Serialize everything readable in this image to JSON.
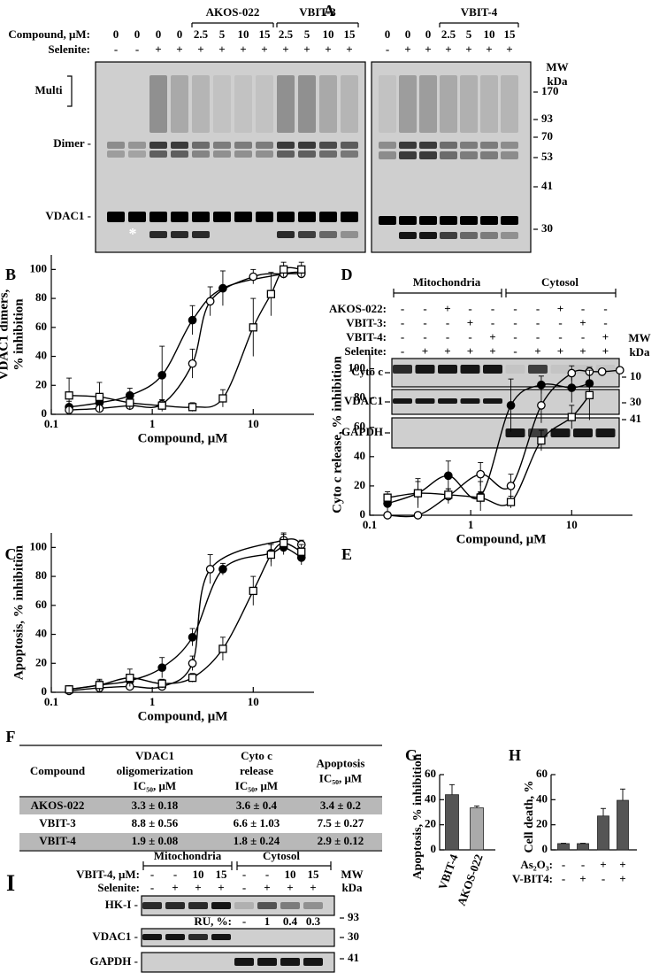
{
  "figure": {
    "A": {
      "letter": "A",
      "compound_label": "Compound, μM:",
      "selenite_label": "Selenite:",
      "groups": [
        "AKOS-022",
        "VBIT-3",
        "VBIT-4"
      ],
      "left_compound": [
        "0",
        "0",
        "0",
        "0",
        "2.5",
        "5",
        "10",
        "15",
        "2.5",
        "5",
        "10",
        "15"
      ],
      "left_selenite": [
        "-",
        "-",
        "+",
        "+",
        "+",
        "+",
        "+",
        "+",
        "+",
        "+",
        "+",
        "+"
      ],
      "right_compound": [
        "0",
        "0",
        "0",
        "2.5",
        "5",
        "10",
        "15"
      ],
      "right_selenite": [
        "-",
        "+",
        "+",
        "+",
        "+",
        "+",
        "+"
      ],
      "mw_header": [
        "MW",
        "kDa"
      ],
      "mw": [
        "170",
        "93",
        "70",
        "53",
        "41",
        "30"
      ],
      "bands": [
        "Multi",
        "Dimer -",
        "VDAC1 -"
      ],
      "asterisk": "*"
    },
    "D": {
      "letter": "D",
      "headers": [
        "Mitochondria",
        "Cytosol"
      ],
      "rows": [
        {
          "label": "AKOS-022:",
          "marks": [
            "-",
            "-",
            "+",
            "-",
            "-",
            "-",
            "-",
            "+",
            "-",
            "-"
          ]
        },
        {
          "label": "VBIT-3:",
          "marks": [
            "-",
            "-",
            "-",
            "+",
            "-",
            "-",
            "-",
            "-",
            "+",
            "-"
          ]
        },
        {
          "label": "VBIT-4:",
          "marks": [
            "-",
            "-",
            "-",
            "-",
            "+",
            "-",
            "-",
            "-",
            "-",
            "+"
          ]
        },
        {
          "label": "Selenite:",
          "marks": [
            "-",
            "+",
            "+",
            "+",
            "+",
            "-",
            "+",
            "+",
            "+",
            "+"
          ]
        }
      ],
      "blots": [
        "Cyto c",
        "VDAC1",
        "GAPDH"
      ],
      "mw_header": [
        "MW",
        "kDa"
      ],
      "mw": [
        "10",
        "30",
        "41"
      ]
    },
    "F": {
      "letter": "F",
      "header": [
        [
          "Compound"
        ],
        [
          "VDAC1",
          "oligomerization",
          "IC₅₀, μM"
        ],
        [
          "Cyto c",
          "release",
          "IC₅₀, μM"
        ],
        [
          "Apoptosis",
          "IC₅₀, μM"
        ]
      ],
      "rows": [
        [
          "AKOS-022",
          "3.3 ± 0.18",
          "3.6 ± 0.4",
          "3.4 ± 0.2"
        ],
        [
          "VBIT-3",
          "8.8 ± 0.56",
          "6.6 ± 1.03",
          "7.5 ± 0.27"
        ],
        [
          "VBIT-4",
          "1.9 ± 0.08",
          "1.8 ± 0.24",
          "2.9 ± 0.12"
        ]
      ]
    },
    "I": {
      "letter": "I",
      "headers": [
        "Mitochondria",
        "Cytosol"
      ],
      "rows": [
        {
          "label": "VBIT-4, μM:",
          "marks": [
            "-",
            "-",
            "10",
            "15",
            "-",
            "-",
            "10",
            "15"
          ]
        },
        {
          "label": "Selenite:",
          "marks": [
            "-",
            "+",
            "+",
            "+",
            "-",
            "+",
            "+",
            "+"
          ]
        }
      ],
      "ru_label": "RU, %:",
      "ru": [
        "-",
        "1",
        "0.4",
        "0.3"
      ],
      "blots": [
        "HK-I -",
        "VDAC1 -",
        "GAPDH -"
      ],
      "mw_header": [
        "MW",
        "kDa"
      ],
      "mw": [
        "93",
        "30",
        "41"
      ]
    }
  },
  "chart_data": [
    {
      "type": "scatter",
      "label": "B",
      "ylabel": [
        "VDAC1 dimers,",
        "% inhibition"
      ],
      "xlabel": "Compound, μM",
      "log_x": true,
      "xlim": [
        0.1,
        40
      ],
      "xticks": [
        0.1,
        1,
        10
      ],
      "ylim": [
        0,
        110
      ],
      "yticks": [
        0,
        20,
        40,
        60,
        80,
        100
      ],
      "series": [
        {
          "marker": "filled-circle",
          "color": "#000",
          "x": [
            0.15,
            0.3,
            0.6,
            1.25,
            2.5,
            5,
            20,
            30
          ],
          "values": [
            5,
            8,
            13,
            27,
            65,
            87,
            97,
            98
          ],
          "errors": [
            4,
            4,
            5,
            20,
            10,
            12,
            3,
            3
          ]
        },
        {
          "marker": "open-circle",
          "color": "#000",
          "x": [
            0.15,
            0.3,
            0.6,
            1.25,
            2.5,
            3.75,
            10,
            20,
            30
          ],
          "values": [
            3,
            4,
            6,
            7,
            35,
            78,
            95,
            97,
            97
          ],
          "errors": [
            2,
            2,
            3,
            3,
            10,
            10,
            5,
            3,
            3
          ]
        },
        {
          "marker": "open-square",
          "color": "#000",
          "x": [
            0.15,
            0.3,
            0.6,
            1.25,
            2.5,
            5,
            10,
            15,
            20,
            30
          ],
          "values": [
            13,
            12,
            8,
            6,
            5,
            11,
            60,
            83,
            100,
            100
          ],
          "errors": [
            12,
            10,
            5,
            4,
            3,
            6,
            20,
            15,
            5,
            5
          ]
        }
      ]
    },
    {
      "type": "scatter",
      "label": "C",
      "ylabel": [
        "Apoptosis, % inhibition"
      ],
      "xlabel": "Compound, μM",
      "log_x": true,
      "xlim": [
        0.1,
        40
      ],
      "xticks": [
        0.1,
        1,
        10
      ],
      "ylim": [
        0,
        110
      ],
      "yticks": [
        0,
        20,
        40,
        60,
        80,
        100
      ],
      "series": [
        {
          "marker": "filled-circle",
          "color": "#000",
          "x": [
            0.15,
            0.3,
            0.6,
            1.25,
            2.5,
            5,
            15,
            20,
            30
          ],
          "values": [
            2,
            5,
            8,
            17,
            38,
            85,
            96,
            100,
            93
          ],
          "errors": [
            2,
            3,
            4,
            7,
            6,
            4,
            6,
            5,
            5
          ]
        },
        {
          "marker": "open-circle",
          "color": "#000",
          "x": [
            0.15,
            0.3,
            0.6,
            1.25,
            2.5,
            3.75,
            20,
            30
          ],
          "values": [
            1,
            3,
            4,
            4,
            20,
            85,
            105,
            102
          ],
          "errors": [
            1,
            2,
            2,
            2,
            5,
            10,
            5,
            3
          ]
        },
        {
          "marker": "open-square",
          "color": "#000",
          "x": [
            0.15,
            0.3,
            0.6,
            1.25,
            2.5,
            5,
            10,
            15,
            20,
            30
          ],
          "values": [
            2,
            5,
            10,
            6,
            10,
            30,
            70,
            95,
            103,
            97
          ],
          "errors": [
            2,
            4,
            6,
            3,
            3,
            8,
            10,
            8,
            6,
            5
          ]
        }
      ]
    },
    {
      "type": "scatter",
      "label": "E",
      "ylabel": [
        "Cyto c release, % inhibition"
      ],
      "xlabel": "Compound, μM",
      "log_x": true,
      "xlim": [
        0.1,
        40
      ],
      "xticks": [
        0.1,
        1,
        10
      ],
      "ylim": [
        0,
        110
      ],
      "yticks": [
        0,
        20,
        40,
        60,
        80,
        100
      ],
      "series": [
        {
          "marker": "filled-circle",
          "color": "#000",
          "x": [
            0.15,
            0.3,
            0.6,
            1.25,
            2.5,
            5,
            10,
            15
          ],
          "values": [
            8,
            15,
            27,
            13,
            75,
            89,
            87,
            90
          ],
          "errors": [
            6,
            8,
            10,
            10,
            18,
            6,
            10,
            8
          ]
        },
        {
          "marker": "open-circle",
          "color": "#000",
          "x": [
            0.15,
            0.3,
            0.6,
            1.25,
            2.5,
            5,
            10,
            15,
            20,
            30
          ],
          "values": [
            0,
            0,
            13,
            28,
            20,
            75,
            97,
            98,
            98,
            99
          ],
          "errors": [
            1,
            1,
            5,
            8,
            8,
            12,
            5,
            3,
            2,
            2
          ]
        },
        {
          "marker": "open-square",
          "color": "#000",
          "x": [
            0.15,
            0.3,
            0.6,
            1.25,
            2.5,
            5,
            10,
            15
          ],
          "values": [
            12,
            15,
            14,
            12,
            9,
            51,
            67,
            82
          ],
          "errors": [
            4,
            10,
            4,
            4,
            4,
            7,
            8,
            17
          ]
        }
      ]
    },
    {
      "type": "bar",
      "label": "G",
      "ylabel": "Apoptosis, % inhibition",
      "categories": [
        "VBIT-4",
        "AKOS-022"
      ],
      "values": [
        44,
        33.5
      ],
      "errors": [
        8,
        1.5
      ],
      "colors": [
        "#555555",
        "#aaaaaa"
      ],
      "ylim": [
        0,
        60
      ],
      "yticks": [
        0,
        20,
        40,
        60
      ]
    },
    {
      "type": "bar",
      "label": "H",
      "ylabel": "Cell death, %",
      "values": [
        5,
        5,
        27,
        39.5
      ],
      "errors": [
        0.3,
        0.3,
        6,
        9
      ],
      "color": "#555555",
      "ylim": [
        0,
        60
      ],
      "yticks": [
        0,
        20,
        40,
        60
      ],
      "conditions": [
        {
          "label": "As₂O₃:",
          "marks": [
            "-",
            "-",
            "+",
            "+"
          ]
        },
        {
          "label": "V-BIT4:",
          "marks": [
            "-",
            "+",
            "-",
            "+"
          ]
        }
      ]
    }
  ]
}
